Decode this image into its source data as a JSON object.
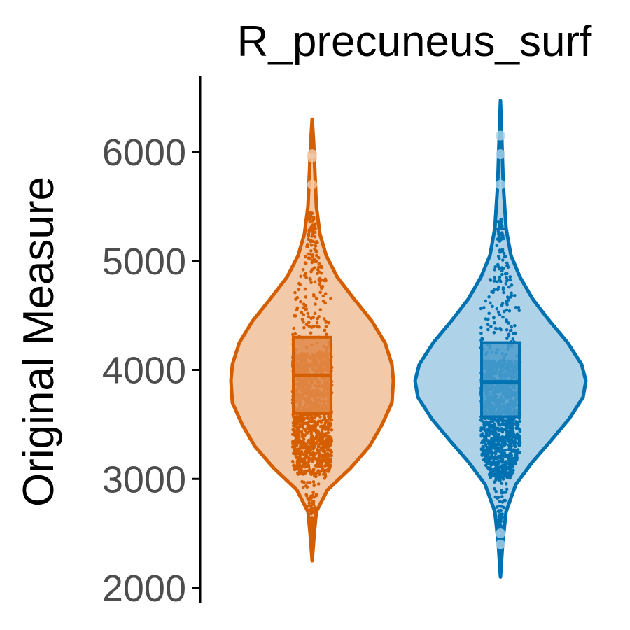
{
  "chart_data": {
    "type": "violin",
    "title": "R_precuneus_surf",
    "xlabel": "",
    "ylabel": "Original Measure",
    "ylim": [
      2000,
      6500
    ],
    "yticks": [
      2000,
      3000,
      4000,
      5000,
      6000
    ],
    "grid": false,
    "legend": "none",
    "series": [
      {
        "color": "#d55e00",
        "fill": "#f2c9a9",
        "box_fill": "#e08a4a",
        "min": 2250,
        "q1": 3600,
        "median": 3950,
        "q3": 4300,
        "max": 6300,
        "outliers": [
          5700,
          5950,
          5980
        ]
      },
      {
        "color": "#0072b2",
        "fill": "#aed2e8",
        "box_fill": "#4a9ccc",
        "min": 2100,
        "q1": 3570,
        "median": 3890,
        "q3": 4250,
        "max": 6470,
        "outliers": [
          2400,
          2500,
          5700,
          5980,
          6150
        ]
      }
    ]
  }
}
